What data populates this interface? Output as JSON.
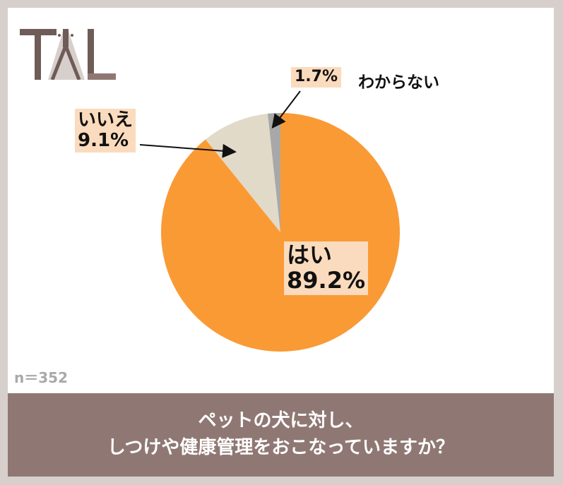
{
  "brand": {
    "logo_alt": "TAL",
    "colors": {
      "dark": "#6f5b57",
      "mid": "#8f7873",
      "light": "#d7cfcb"
    }
  },
  "chart_data": {
    "type": "pie",
    "categories": [
      "はい",
      "いいえ",
      "わからない"
    ],
    "values": [
      89.2,
      9.1,
      1.7
    ],
    "value_labels": [
      "89.2%",
      "9.1%",
      "1.7%"
    ],
    "colors": [
      "#fa9a35",
      "#e2dac8",
      "#a8a8a8"
    ],
    "start_angle_deg": 0,
    "direction": "clockwise",
    "title": "ペットの犬に対し、しつけや健康管理をおこなっていますか？"
  },
  "sample_note": "n＝352",
  "question": {
    "line1": "ペットの犬に対し、",
    "line2": "しつけや健康管理をおこなっていますか？"
  }
}
